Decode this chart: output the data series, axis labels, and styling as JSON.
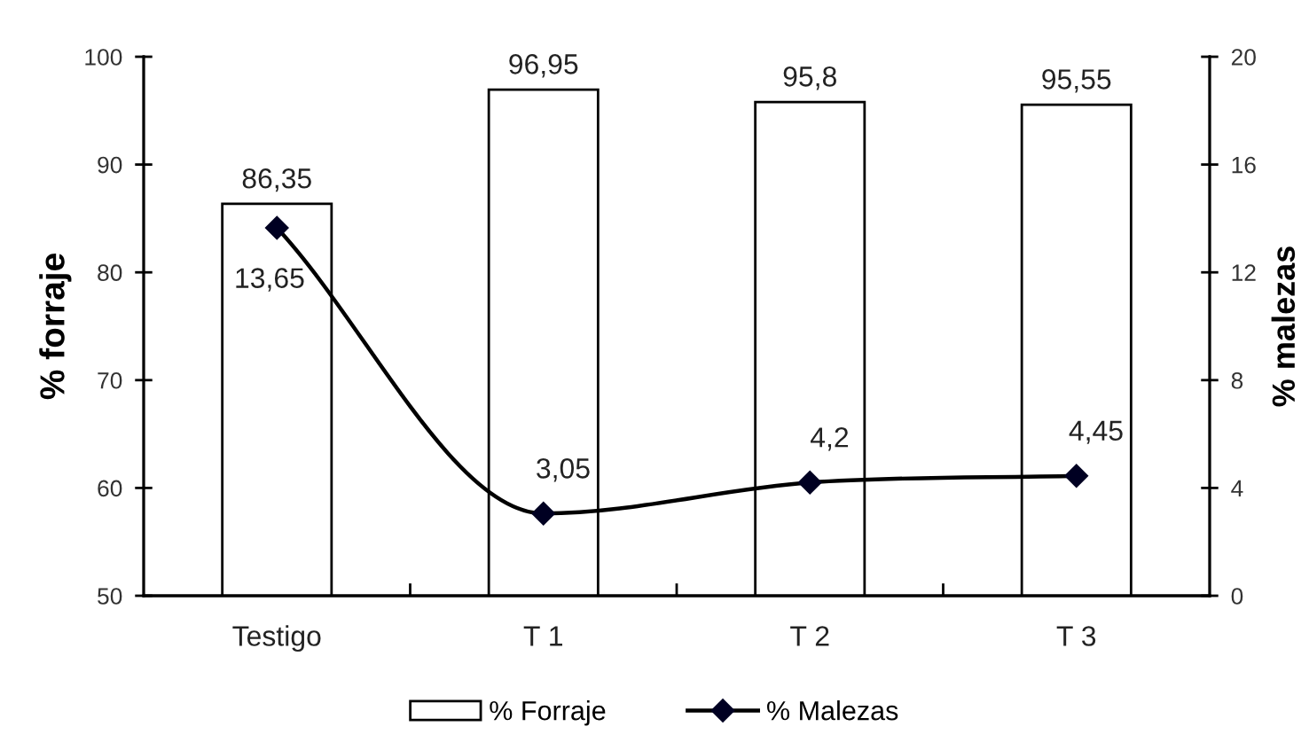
{
  "chart_data": {
    "type": "bar",
    "categories": [
      "Testigo",
      "T 1",
      "T 2",
      "T 3"
    ],
    "series": [
      {
        "name": "% Forraje",
        "color": "#ffffff",
        "values": [
          86.35,
          96.95,
          95.8,
          95.55
        ],
        "value_labels": [
          "86,35",
          "96,95",
          "95,8",
          "95,55"
        ]
      },
      {
        "name": "% Malezas",
        "type": "line",
        "axis": "y2",
        "color": "#000022",
        "values": [
          13.65,
          3.05,
          4.2,
          4.45
        ],
        "value_labels": [
          "13,65",
          "3,05",
          "4,2",
          "4,45"
        ]
      }
    ],
    "ylabel": "% forraje",
    "y2label": "% malezas",
    "ylim": [
      50,
      100
    ],
    "yticks": [
      50,
      60,
      70,
      80,
      90,
      100
    ],
    "y2lim": [
      0,
      20
    ],
    "y2ticks": [
      0,
      4,
      8,
      12,
      16,
      20
    ],
    "marker": "diamond",
    "grid": false,
    "legend": "bottom"
  }
}
